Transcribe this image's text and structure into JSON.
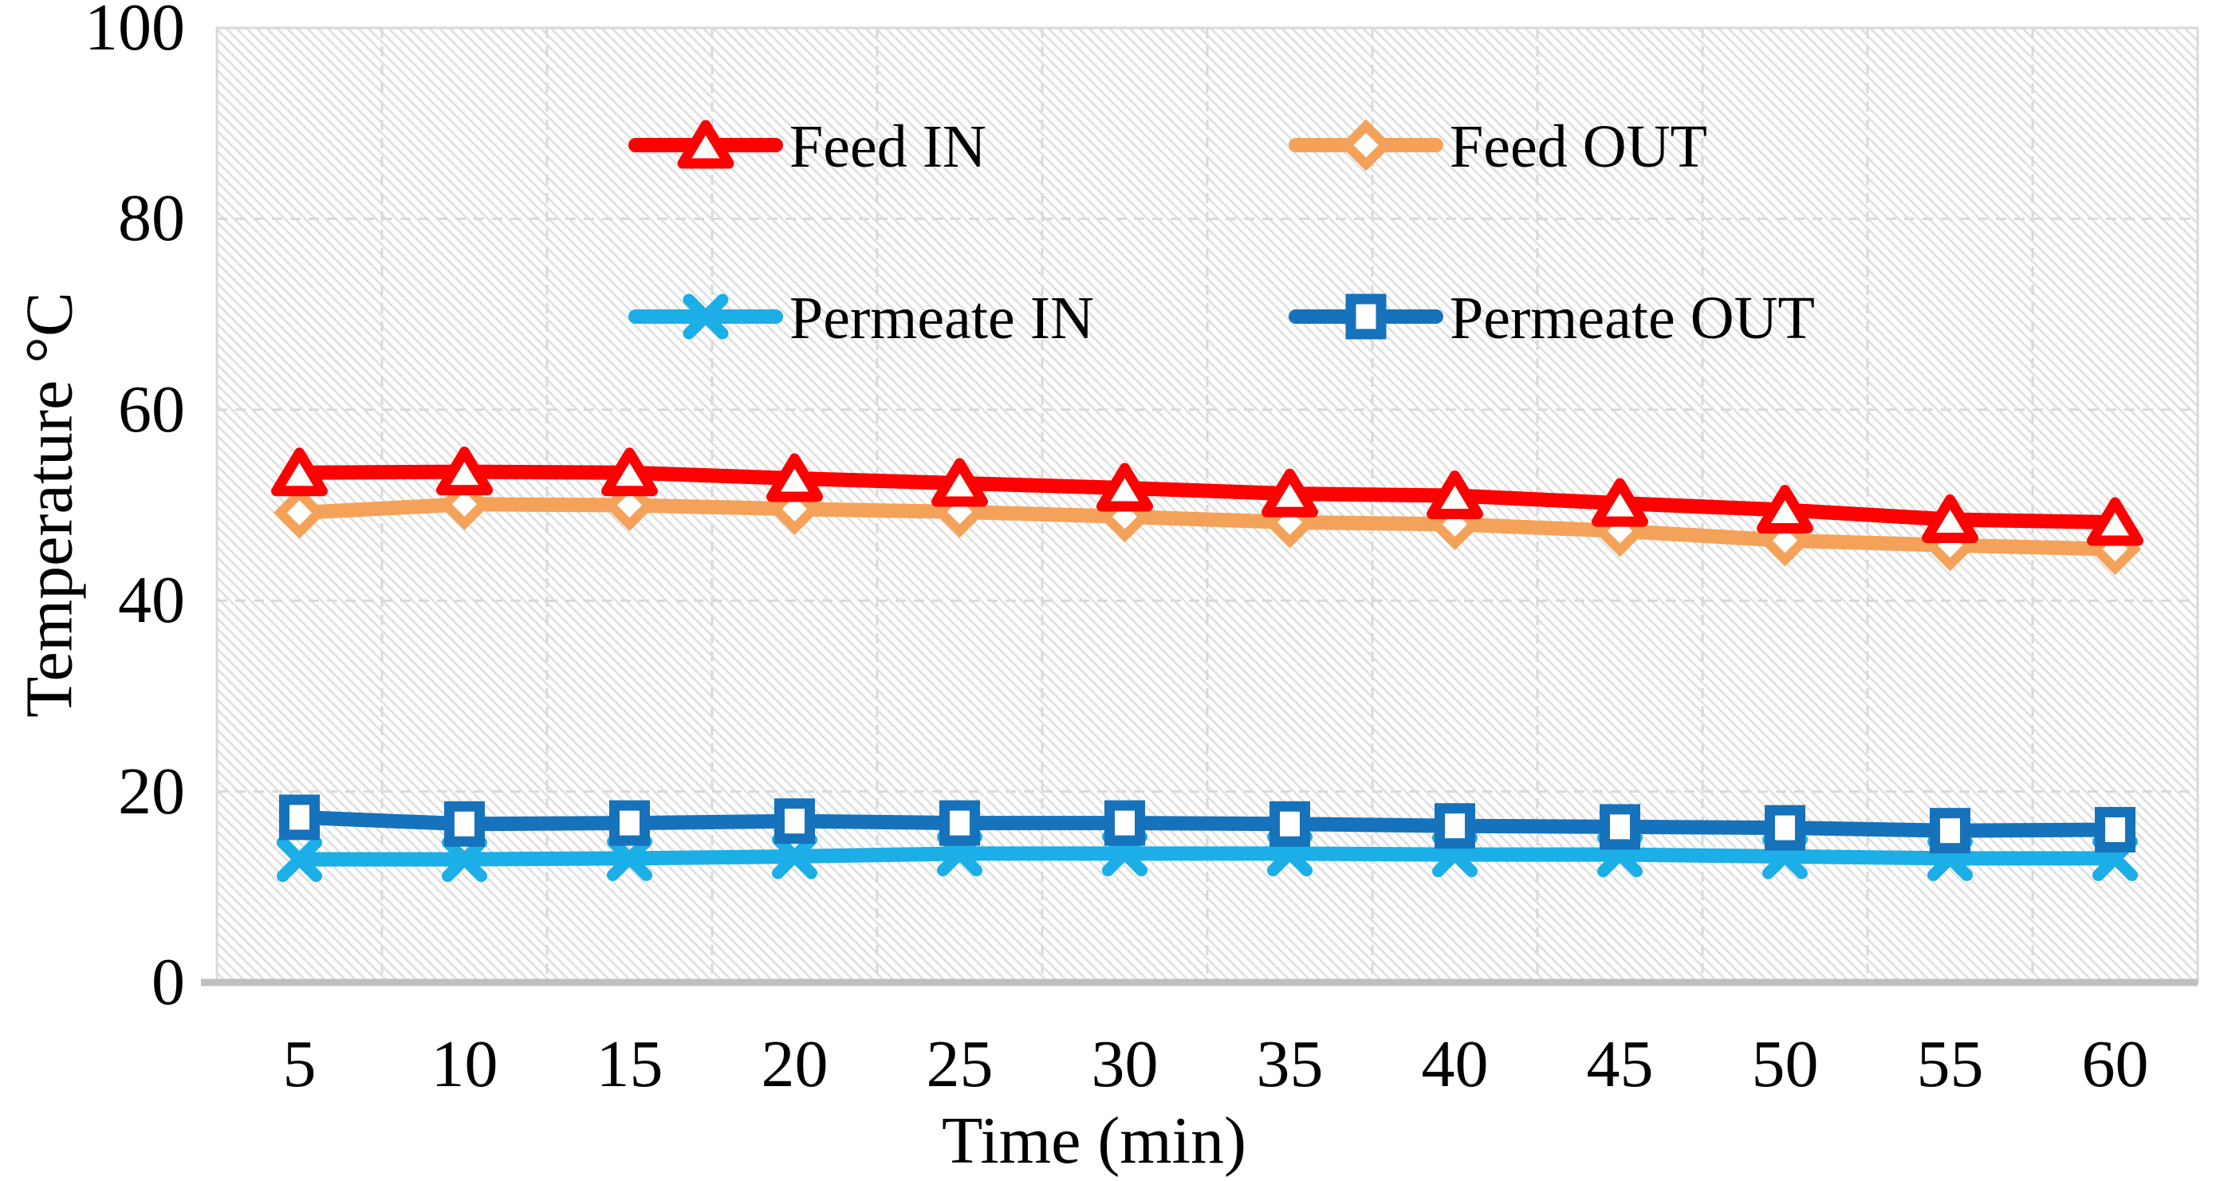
{
  "chart_data": {
    "type": "line",
    "title": "",
    "xlabel": "Time (min)",
    "ylabel": "Temperature °C",
    "x": [
      5,
      10,
      15,
      20,
      25,
      30,
      35,
      40,
      45,
      50,
      55,
      60
    ],
    "x_ticks": [
      "5",
      "10",
      "15",
      "20",
      "25",
      "30",
      "35",
      "40",
      "45",
      "50",
      "55",
      "60"
    ],
    "y_ticks": [
      "0",
      "20",
      "40",
      "60",
      "80",
      "100"
    ],
    "y_tick_values": [
      0,
      20,
      40,
      60,
      80,
      100
    ],
    "ylim": [
      0,
      100
    ],
    "grid": "dashed horizontal and vertical gridlines",
    "plot_background": "white with light-gray downward diagonal hatch",
    "legend_position": "inside plot, top, two columns by two rows",
    "series": [
      {
        "name": "Feed IN",
        "color": "#FF0000",
        "marker": "triangle-open",
        "values": [
          53.4,
          53.5,
          53.4,
          52.8,
          52.3,
          51.8,
          51.2,
          51.0,
          50.2,
          49.5,
          48.5,
          48.2
        ]
      },
      {
        "name": "Feed OUT",
        "color": "#F4A259",
        "marker": "diamond-open",
        "values": [
          49.2,
          50.1,
          50.0,
          49.6,
          49.3,
          48.8,
          48.2,
          48.0,
          47.3,
          46.3,
          45.8,
          45.4
        ]
      },
      {
        "name": "Permeate IN",
        "color": "#1BAEE7",
        "marker": "x-cross",
        "values": [
          12.9,
          12.9,
          13.0,
          13.2,
          13.5,
          13.5,
          13.5,
          13.4,
          13.4,
          13.2,
          13.0,
          13.0
        ]
      },
      {
        "name": "Permeate OUT",
        "color": "#1672BA",
        "marker": "square-open",
        "values": [
          17.3,
          16.6,
          16.7,
          16.9,
          16.7,
          16.7,
          16.6,
          16.4,
          16.3,
          16.2,
          15.9,
          16.0
        ]
      }
    ],
    "colors": {
      "grid": "#D9D9D9",
      "axis_line": "#BFBFBF",
      "hatch": "#DEDEDE",
      "text": "#000000",
      "marker_fill": "#FFFFFF"
    }
  }
}
